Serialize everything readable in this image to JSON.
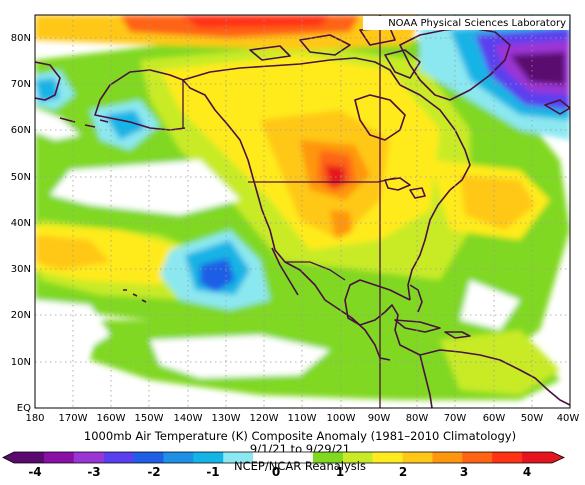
{
  "header": {
    "credit": "NOAA Physical Sciences Laboratory"
  },
  "map": {
    "lat_labels": [
      "80N",
      "70N",
      "60N",
      "50N",
      "40N",
      "30N",
      "20N",
      "10N",
      "EQ"
    ],
    "lon_labels": [
      "180",
      "170W",
      "160W",
      "150W",
      "140W",
      "130W",
      "120W",
      "110W",
      "100W",
      "90W",
      "80W",
      "70W",
      "60W",
      "50W",
      "40W"
    ],
    "lon_range": [
      -180,
      -40
    ],
    "lat_range": [
      0,
      85
    ],
    "grid": "dotted"
  },
  "caption": {
    "line1": "1000mb Air Temperature (K) Composite Anomaly (1981–2010 Climatology)",
    "line2": "9/1/21 to 9/29/21",
    "line3": "NCEP/NCAR Reanalysis"
  },
  "colorbar": {
    "labels": [
      "-4",
      "-3",
      "-2",
      "-1",
      "0",
      "1",
      "2",
      "3",
      "4"
    ],
    "colors": [
      "#5a0a6e",
      "#8a0fa5",
      "#9b36d6",
      "#5a3ff0",
      "#1e5fe6",
      "#1e90e6",
      "#14b4e6",
      "#8ce8f0",
      "#ffffff",
      "#ffffff",
      "#80d820",
      "#c8eb28",
      "#ffeb1e",
      "#ffc818",
      "#ff9610",
      "#ff6414",
      "#ff3214",
      "#e6141e"
    ]
  }
}
